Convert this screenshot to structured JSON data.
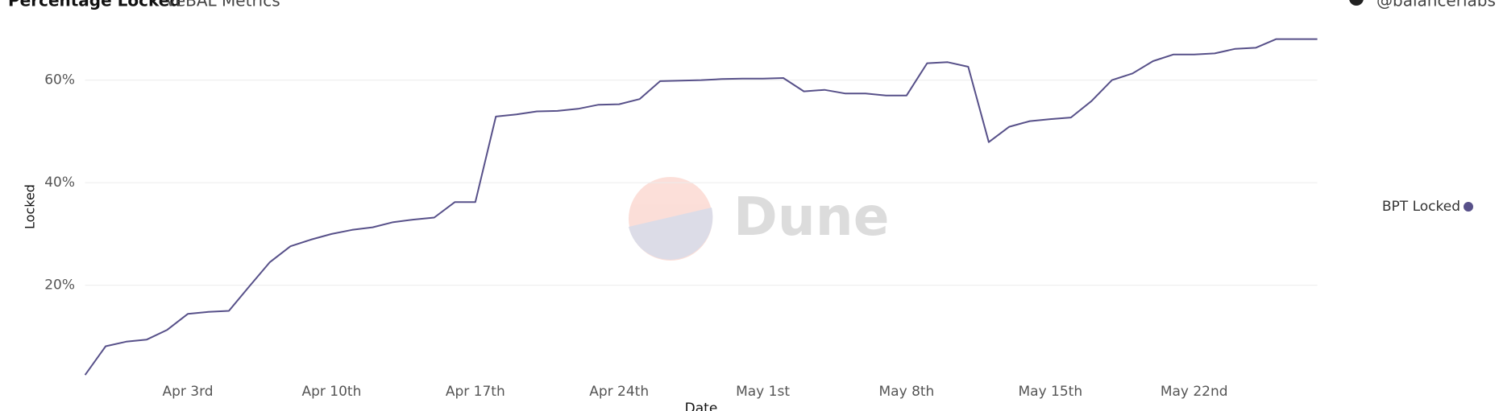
{
  "chart_data": {
    "type": "line",
    "title": "Percentage Locked",
    "subtitle": "veBAL Metrics",
    "author": "@balancerlabs",
    "watermark": "Dune",
    "x_label": "Date",
    "y_label": "Locked",
    "categories": [
      null,
      null,
      null,
      null,
      null,
      "Apr 3rd",
      null,
      null,
      null,
      null,
      null,
      null,
      "Apr 10th",
      null,
      null,
      null,
      null,
      null,
      null,
      "Apr 17th",
      null,
      null,
      null,
      null,
      null,
      null,
      "Apr 24th",
      null,
      null,
      null,
      null,
      null,
      null,
      "May 1st",
      null,
      null,
      null,
      null,
      null,
      null,
      "May 8th",
      null,
      null,
      null,
      null,
      null,
      null,
      "May 15th",
      null,
      null,
      null,
      null,
      null,
      null,
      "May 22nd",
      null,
      null,
      null,
      null,
      null,
      null
    ],
    "series": [
      {
        "name": "BPT Locked",
        "color": "#575089",
        "values": [
          2.5,
          8.1,
          9.0,
          9.4,
          11.3,
          14.4,
          14.8,
          15.0,
          19.8,
          24.5,
          27.6,
          28.9,
          30.0,
          30.8,
          31.3,
          32.3,
          32.8,
          33.2,
          36.2,
          36.2,
          52.9,
          53.3,
          53.9,
          54.0,
          54.4,
          55.2,
          55.3,
          56.3,
          59.8,
          59.9,
          60.0,
          60.2,
          60.3,
          60.3,
          60.4,
          57.8,
          58.1,
          57.4,
          57.4,
          57.0,
          57.0,
          63.3,
          63.5,
          62.6,
          47.9,
          50.9,
          52.0,
          52.4,
          52.7,
          55.9,
          60.0,
          61.3,
          63.7,
          65.0,
          65.0,
          65.2,
          66.1,
          66.3,
          68.0,
          68.0,
          68.0
        ]
      }
    ],
    "ylim": [
      2,
      68.5
    ],
    "yticks": [
      {
        "value": 20,
        "label": "20%"
      },
      {
        "value": 40,
        "label": "40%"
      },
      {
        "value": 60,
        "label": "60%"
      }
    ],
    "grid": true,
    "legend": "right"
  }
}
